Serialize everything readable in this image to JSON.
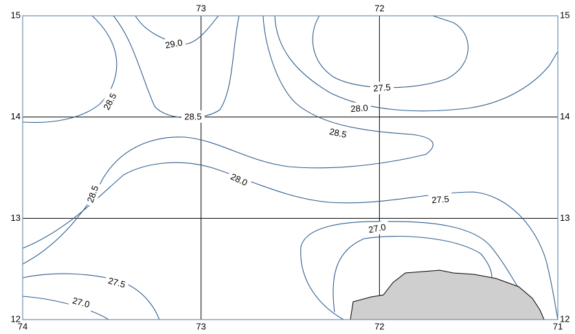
{
  "map": {
    "xlim": [
      74,
      71
    ],
    "ylim": [
      12,
      15
    ],
    "bottom_ticks": [
      74,
      73,
      72,
      71
    ],
    "top_ticks": [
      73,
      72
    ],
    "y_ticks": [
      15,
      14,
      13,
      12
    ],
    "contour_labels": [
      {
        "value": 29,
        "label": "29.0"
      },
      {
        "value": 28.5,
        "label": "28.5"
      },
      {
        "value": 28.5,
        "label": "28.5"
      },
      {
        "value": 27.5,
        "label": "27.5"
      },
      {
        "value": 28,
        "label": "28.0"
      },
      {
        "value": 28.5,
        "label": "28.5"
      },
      {
        "value": 28,
        "label": "28.0"
      },
      {
        "value": 28.5,
        "label": "28.5"
      },
      {
        "value": 27.5,
        "label": "27.5"
      },
      {
        "value": 27,
        "label": "27.0"
      },
      {
        "value": 27.5,
        "label": "27.5"
      },
      {
        "value": 27,
        "label": "27.0"
      }
    ]
  }
}
